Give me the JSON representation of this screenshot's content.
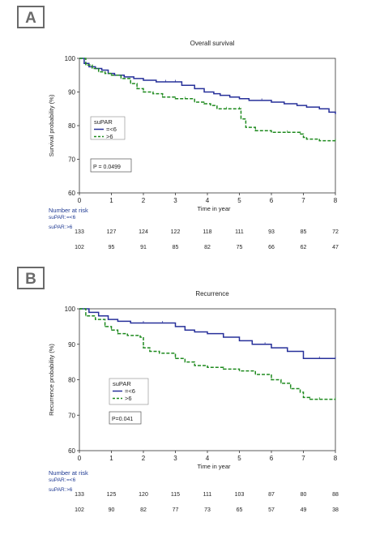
{
  "colors": {
    "low_group": "#27309a",
    "high_group": "#1e8a1e",
    "axis": "#333333",
    "risk_text": "#1f3a93"
  },
  "chart_data": [
    {
      "type": "line",
      "panel_letter": "A",
      "title": "Overall survival",
      "xlabel": "Time in year",
      "ylabel": "Survival probability (%)",
      "xlim": [
        0,
        8
      ],
      "ylim": [
        60,
        100
      ],
      "x_ticks": [
        "0",
        "1",
        "2",
        "3",
        "4",
        "5",
        "6",
        "7",
        "8"
      ],
      "y_ticks": [
        "60",
        "70",
        "80",
        "90",
        "100"
      ],
      "legend": {
        "title": "suPAR",
        "placement": "center-left"
      },
      "series": [
        {
          "name": "=<6",
          "style": "solid",
          "x": [
            0,
            0.15,
            0.3,
            0.5,
            0.7,
            0.9,
            1.1,
            1.4,
            1.7,
            2.0,
            2.4,
            2.7,
            3.0,
            3.2,
            3.6,
            3.9,
            4.2,
            4.4,
            4.7,
            5.0,
            5.3,
            5.7,
            6.0,
            6.4,
            6.8,
            7.1,
            7.5,
            7.8,
            8.0
          ],
          "y": [
            100,
            98.5,
            97.5,
            97,
            96.5,
            95.5,
            95,
            94.5,
            94,
            93.5,
            93,
            93,
            93,
            92,
            91,
            90,
            89.5,
            89,
            88.5,
            88,
            87.5,
            87.5,
            87,
            86.5,
            86,
            85.5,
            85,
            84,
            83.5
          ]
        },
        {
          "name": ">6",
          "style": "dashed",
          "x": [
            0,
            0.2,
            0.4,
            0.6,
            0.8,
            1.0,
            1.3,
            1.6,
            1.8,
            2.0,
            2.3,
            2.6,
            3.0,
            3.3,
            3.6,
            3.9,
            4.1,
            4.3,
            4.6,
            5.0,
            5.05,
            5.2,
            5.5,
            6.0,
            6.5,
            6.9,
            7.0,
            7.1,
            7.5,
            8.0
          ],
          "y": [
            100,
            98,
            97,
            96,
            95.5,
            95,
            94,
            92.5,
            91,
            90,
            89.5,
            88.5,
            88,
            88,
            87,
            86.5,
            86,
            85,
            85,
            85,
            82,
            79.5,
            78.5,
            78,
            78,
            77.5,
            76.5,
            76,
            75.5,
            75.5
          ]
        }
      ],
      "pvalue": "P = 0.0499",
      "risk_table": {
        "title": "Number at risk",
        "group_label": "suPAR:",
        "rows": [
          {
            "group": "=<6",
            "counts": [
              "133",
              "127",
              "124",
              "122",
              "118",
              "111",
              "93",
              "85",
              "72"
            ]
          },
          {
            "group": ">6",
            "counts": [
              "102",
              "95",
              "91",
              "85",
              "82",
              "75",
              "66",
              "62",
              "47"
            ]
          }
        ]
      }
    },
    {
      "type": "line",
      "panel_letter": "B",
      "title": "Recurrence",
      "xlabel": "Time in year",
      "ylabel": "Recurrence probability (%)",
      "xlim": [
        0,
        8
      ],
      "ylim": [
        60,
        100
      ],
      "x_ticks": [
        "0",
        "1",
        "2",
        "3",
        "4",
        "5",
        "6",
        "7",
        "8"
      ],
      "y_ticks": [
        "60",
        "70",
        "80",
        "90",
        "100"
      ],
      "legend": {
        "title": "suPAR",
        "placement": "center-left"
      },
      "series": [
        {
          "name": "=<6",
          "style": "solid",
          "x": [
            0,
            0.3,
            0.6,
            0.9,
            1.2,
            1.6,
            2.0,
            2.6,
            3.0,
            3.3,
            3.6,
            4.0,
            4.5,
            5.0,
            5.4,
            5.8,
            6.0,
            6.5,
            7.0,
            7.5,
            8.0
          ],
          "y": [
            100,
            99,
            98,
            97,
            96.5,
            96,
            96,
            96,
            95,
            94,
            93.5,
            93,
            92,
            91,
            90,
            90,
            89,
            88,
            86,
            86,
            86
          ]
        },
        {
          "name": ">6",
          "style": "dashed",
          "x": [
            0,
            0.2,
            0.5,
            0.8,
            1.0,
            1.2,
            1.5,
            1.9,
            2.0,
            2.2,
            2.5,
            3.0,
            3.3,
            3.6,
            4.0,
            4.5,
            5.0,
            5.5,
            6.0,
            6.3,
            6.6,
            6.9,
            7.0,
            7.2,
            7.5,
            8.0
          ],
          "y": [
            100,
            98,
            97,
            95,
            94,
            93,
            92.5,
            92,
            89,
            88,
            87.5,
            86,
            85,
            84,
            83.5,
            83,
            82.5,
            81.5,
            80,
            79,
            77.5,
            76.5,
            75,
            74.5,
            74.5,
            74.5
          ]
        }
      ],
      "pvalue": "P=0.041",
      "risk_table": {
        "title": "Number at risk",
        "group_label": "suPAR:",
        "rows": [
          {
            "group": "=<6",
            "counts": [
              "133",
              "125",
              "120",
              "115",
              "111",
              "103",
              "87",
              "80",
              "88"
            ]
          },
          {
            "group": ">6",
            "counts": [
              "102",
              "90",
              "82",
              "77",
              "73",
              "65",
              "57",
              "49",
              "38"
            ]
          }
        ]
      }
    }
  ]
}
